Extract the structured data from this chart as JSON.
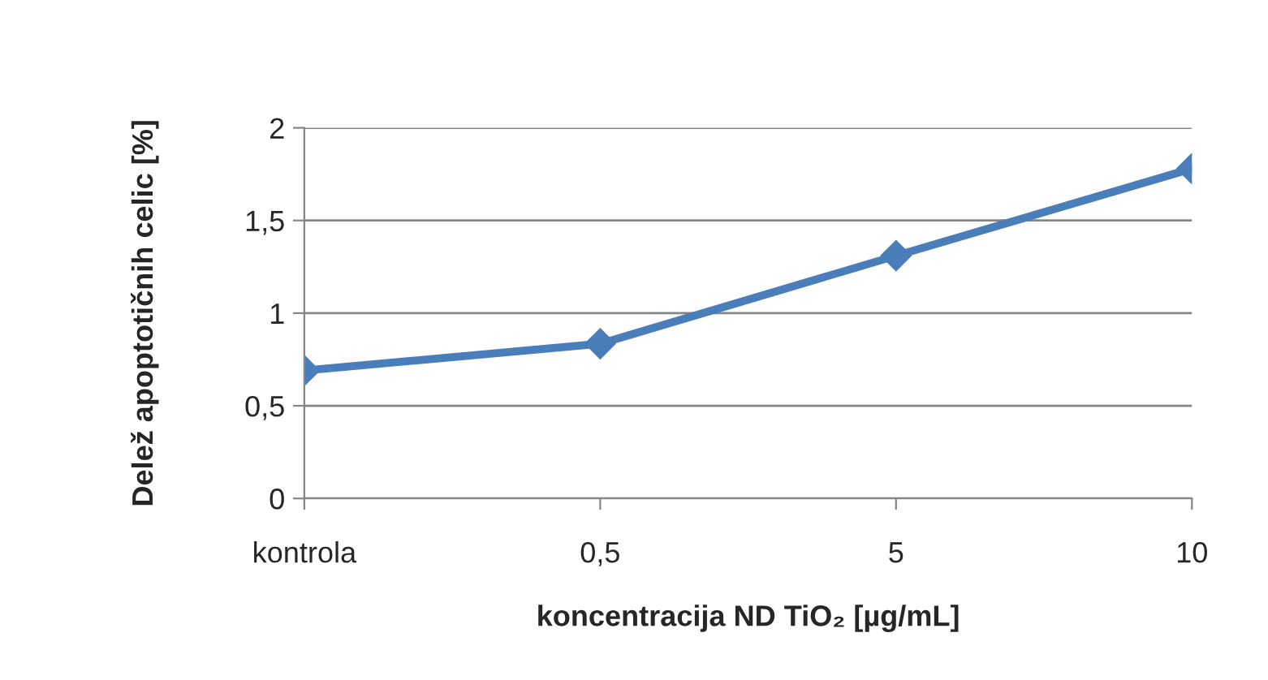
{
  "chart_data": {
    "type": "line",
    "xlabel": "koncentracija ND TiO₂ [µg/mL]",
    "ylabel": "Delež apoptotičnih celic [%]",
    "categories": [
      "kontrola",
      "0,5",
      "5",
      "10"
    ],
    "series": [
      {
        "color": "#4a7ebb",
        "values": [
          0.69,
          0.835,
          1.31,
          1.78
        ]
      }
    ],
    "ylim": [
      0,
      2
    ],
    "yticks": [
      0,
      {
        "value": 0.5,
        "label": "0,5"
      },
      1,
      {
        "value": 1.5,
        "label": "1,5"
      },
      2
    ],
    "grid": "y",
    "marker": "diamond",
    "line_style": "solid",
    "legend": false
  }
}
